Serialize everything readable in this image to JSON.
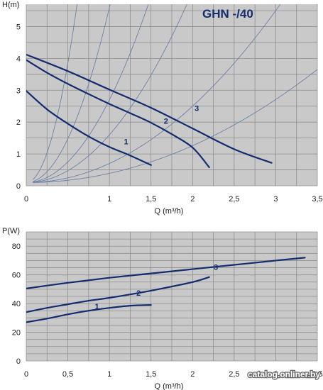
{
  "colors": {
    "plot_bg": "#c9c9c9",
    "grid": "#8f8f8f",
    "curve": "#142c6e",
    "system_curve": "#6f80a6",
    "title": "#142c6e"
  },
  "watermark": "catalog.onliner.by",
  "chart_data": [
    {
      "type": "line",
      "title": "GHN -/40",
      "xlabel": "Q (m³/h)",
      "ylabel": "H(m)",
      "xlim": [
        0,
        3.5
      ],
      "ylim": [
        0,
        5.7
      ],
      "grid": true,
      "x_ticks": [
        "0",
        "1",
        "1,5",
        "2",
        "2,5",
        "3",
        "3,5"
      ],
      "x_tick_values": [
        0,
        1,
        1.5,
        2,
        2.5,
        3,
        3.5
      ],
      "y_ticks": [
        "0",
        "1",
        "2",
        "3",
        "4",
        "5"
      ],
      "y_tick_values": [
        0,
        1,
        2,
        3,
        4,
        5
      ],
      "series": [
        {
          "name": "1",
          "x": [
            0,
            0.25,
            0.5,
            0.75,
            1.0,
            1.25,
            1.5
          ],
          "y": [
            2.98,
            2.4,
            1.95,
            1.55,
            1.22,
            0.95,
            0.65
          ]
        },
        {
          "name": "2",
          "x": [
            0,
            0.25,
            0.5,
            0.75,
            1.0,
            1.25,
            1.5,
            1.75,
            2.0,
            2.2
          ],
          "y": [
            3.95,
            3.55,
            3.2,
            2.88,
            2.57,
            2.28,
            1.98,
            1.62,
            1.2,
            0.58
          ]
        },
        {
          "name": "3",
          "x": [
            0,
            0.5,
            1.0,
            1.5,
            2.0,
            2.5,
            2.95
          ],
          "y": [
            4.12,
            3.6,
            3.02,
            2.45,
            1.8,
            1.15,
            0.72
          ]
        }
      ],
      "series_labels": [
        {
          "name": "1",
          "x": 1.2,
          "y": 1.3
        },
        {
          "name": "2",
          "x": 1.68,
          "y": 1.95
        },
        {
          "name": "3",
          "x": 2.05,
          "y": 2.35
        }
      ],
      "system_curves": [
        {
          "k": 15.0
        },
        {
          "k": 5.5
        },
        {
          "k": 2.6
        },
        {
          "k": 1.5
        },
        {
          "k": 0.6
        },
        {
          "k": 0.29
        }
      ]
    },
    {
      "type": "line",
      "title": "",
      "xlabel": "Q (m³/h)",
      "ylabel": "P(W)",
      "xlim": [
        0,
        3.5
      ],
      "ylim": [
        0,
        90
      ],
      "grid": true,
      "x_ticks": [
        "0",
        "0,5",
        "1",
        "1,5",
        "2",
        "2,5",
        "3",
        "3,5"
      ],
      "x_tick_values": [
        0,
        0.5,
        1,
        1.5,
        2,
        2.5,
        3,
        3.5
      ],
      "y_ticks": [
        "0",
        "20",
        "40",
        "60",
        "80"
      ],
      "y_tick_values": [
        0,
        20,
        40,
        60,
        80
      ],
      "series": [
        {
          "name": "1",
          "x": [
            0,
            0.25,
            0.5,
            0.75,
            1.0,
            1.25,
            1.5
          ],
          "y": [
            27,
            29.5,
            32.5,
            35,
            37,
            38.5,
            39
          ]
        },
        {
          "name": "2",
          "x": [
            0,
            0.25,
            0.5,
            0.75,
            1.0,
            1.5,
            2.0,
            2.2
          ],
          "y": [
            34,
            37,
            39.5,
            42,
            44,
            49,
            55,
            58.5
          ]
        },
        {
          "name": "3",
          "x": [
            0,
            0.5,
            1.0,
            1.5,
            2.0,
            2.5,
            3.0,
            3.35
          ],
          "y": [
            50.5,
            54.5,
            58,
            61,
            64,
            67,
            70,
            72
          ]
        }
      ],
      "series_labels": [
        {
          "name": "1",
          "x": 0.85,
          "y": 36
        },
        {
          "name": "2",
          "x": 1.35,
          "y": 45.5
        },
        {
          "name": "3",
          "x": 2.28,
          "y": 63.5
        }
      ]
    }
  ]
}
